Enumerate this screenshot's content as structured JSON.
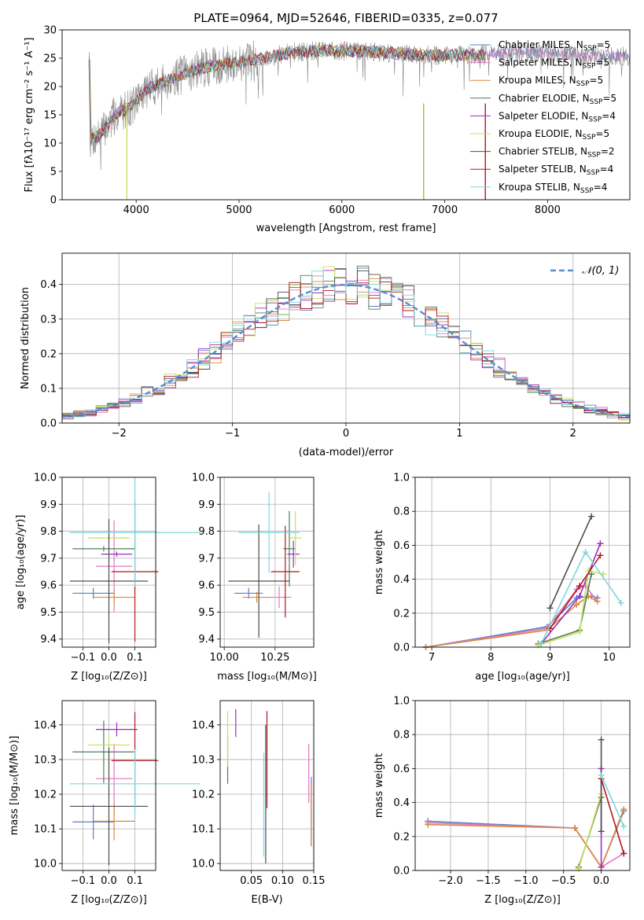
{
  "colors": {
    "Chabrier MILES": "#5b7fc4",
    "Salpeter MILES": "#e377c2",
    "Kroupa MILES": "#d98a3e",
    "Chabrier ELODIE": "#4f7d5a",
    "Salpeter ELODIE": "#9a2fbf",
    "Kroupa ELODIE": "#c8e05a",
    "Chabrier STELIB": "#4d4d4d",
    "Salpeter STELIB": "#b0181e",
    "Kroupa STELIB": "#7dd6dc",
    "normal": "#5b8ad6"
  },
  "chart_data": [
    {
      "id": "spectrum",
      "type": "line",
      "title": "PLATE=0964, MJD=52646, FIBERID=0335, z=0.077",
      "xlabel": "wavelength [Angstrom, rest frame]",
      "ylabel": "Flux [fλ10⁻¹⁷ erg cm⁻² s⁻¹ A⁻¹]",
      "xlim": [
        3280,
        8800
      ],
      "ylim": [
        0,
        30
      ],
      "xticks": [
        "4000",
        "5000",
        "6000",
        "7000",
        "8000"
      ],
      "yticks": [
        "0",
        "5",
        "10",
        "15",
        "20",
        "25",
        "30"
      ],
      "legend_position": "right",
      "legend": [
        {
          "prefix": "Chabrier MILES, N",
          "sub": "SSP",
          "suffix": "=5"
        },
        {
          "prefix": "Salpeter MILES, N",
          "sub": "SSP",
          "suffix": "=5"
        },
        {
          "prefix": "Kroupa MILES, N",
          "sub": "SSP",
          "suffix": "=5"
        },
        {
          "prefix": "Chabrier ELODIE, N",
          "sub": "SSP",
          "suffix": "=5"
        },
        {
          "prefix": "Salpeter ELODIE, N",
          "sub": "SSP",
          "suffix": "=4"
        },
        {
          "prefix": "Kroupa ELODIE, N",
          "sub": "SSP",
          "suffix": "=5"
        },
        {
          "prefix": "Chabrier STELIB, N",
          "sub": "SSP",
          "suffix": "=2"
        },
        {
          "prefix": "Salpeter STELIB, N",
          "sub": "SSP",
          "suffix": "=4"
        },
        {
          "prefix": "Kroupa STELIB, N",
          "sub": "SSP",
          "suffix": "=4"
        }
      ],
      "continuum": [
        [
          3550,
          10.5
        ],
        [
          3650,
          11.5
        ],
        [
          3800,
          15
        ],
        [
          3950,
          16.5
        ],
        [
          4100,
          19.5
        ],
        [
          4300,
          21
        ],
        [
          4500,
          22.5
        ],
        [
          4700,
          23.5
        ],
        [
          4900,
          24
        ],
        [
          5100,
          24.5
        ],
        [
          5300,
          25.2
        ],
        [
          5500,
          26
        ],
        [
          5800,
          26.3
        ],
        [
          6100,
          26.3
        ],
        [
          6400,
          26
        ],
        [
          6800,
          25.5
        ],
        [
          7200,
          25.5
        ],
        [
          7600,
          26
        ],
        [
          8000,
          26
        ],
        [
          8300,
          25.5
        ],
        [
          8800,
          25.3
        ]
      ]
    },
    {
      "id": "residuals",
      "type": "histogram",
      "xlabel": "(data-model)/error",
      "ylabel": "Normed distribution",
      "xlim": [
        -2.5,
        2.5
      ],
      "ylim": [
        0,
        0.49
      ],
      "xticks": [
        "−2",
        "−1",
        "0",
        "1",
        "2"
      ],
      "yticks": [
        "0.0",
        "0.1",
        "0.2",
        "0.3",
        "0.4"
      ],
      "legend": "𝒩(0, 1)",
      "legend_position": "top-right",
      "bin_width": 0.1
    },
    {
      "id": "age-vs-Z",
      "type": "errorbar",
      "xlabel": "Z [log₁₀(Z/Z⊙)]",
      "ylabel": "age  [log₁₀(age/yr)]",
      "xlim": [
        -0.18,
        0.18
      ],
      "ylim": [
        9.37,
        10.0
      ],
      "xticks": [
        "−0.1",
        "0.0",
        "0.1"
      ],
      "yticks": [
        "9.4",
        "9.5",
        "9.6",
        "9.7",
        "9.8",
        "9.9",
        "10.0"
      ],
      "points": [
        {
          "series": "Chabrier MILES",
          "x": -0.06,
          "xerr": 0.08,
          "y": 9.57,
          "yerr": 0.02
        },
        {
          "series": "Salpeter MILES",
          "x": 0.02,
          "xerr": 0.07,
          "y": 9.67,
          "yerr": 0.17
        },
        {
          "series": "Kroupa MILES",
          "x": 0.02,
          "xerr": 0.08,
          "y": 9.555,
          "yerr": 0.03
        },
        {
          "series": "Chabrier ELODIE",
          "x": -0.02,
          "xerr": 0.12,
          "y": 9.735,
          "yerr": 0.01
        },
        {
          "series": "Salpeter ELODIE",
          "x": 0.03,
          "xerr": 0.06,
          "y": 9.715,
          "yerr": 0.01
        },
        {
          "series": "Kroupa ELODIE",
          "x": 0.0,
          "xerr": 0.08,
          "y": 9.775,
          "yerr": 0.01
        },
        {
          "series": "Chabrier STELIB",
          "x": 0.0,
          "xerr": 0.15,
          "y": 9.615,
          "yerr": 0.23
        },
        {
          "series": "Salpeter STELIB",
          "x": 0.1,
          "xerr": 0.09,
          "y": 9.65,
          "yerr": 0.26
        },
        {
          "series": "Kroupa STELIB",
          "x": 0.1,
          "xerr": 0.25,
          "y": 9.795,
          "yerr": 0.2
        }
      ]
    },
    {
      "id": "age-vs-mass",
      "type": "errorbar",
      "xlabel": "mass [log₁₀(M/M⊙)]",
      "ylabel": "",
      "xlim": [
        9.98,
        10.44
      ],
      "ylim": [
        9.37,
        10.0
      ],
      "xticks": [
        "10.00",
        "10.25"
      ],
      "yticks": [
        "9.4",
        "9.5",
        "9.6",
        "9.7",
        "9.8",
        "9.9",
        "10.0"
      ],
      "points": [
        {
          "series": "Chabrier MILES",
          "x": 10.12,
          "xerr": 0.07,
          "y": 9.57,
          "yerr": 0.02
        },
        {
          "series": "Salpeter MILES",
          "x": 10.27,
          "xerr": 0.06,
          "y": 9.555,
          "yerr": 0.04
        },
        {
          "series": "Kroupa MILES",
          "x": 10.16,
          "xerr": 0.07,
          "y": 9.555,
          "yerr": 0.02
        },
        {
          "series": "Chabrier ELODIE",
          "x": 10.32,
          "xerr": 0.03,
          "y": 9.735,
          "yerr": 0.14
        },
        {
          "series": "Salpeter ELODIE",
          "x": 10.34,
          "xerr": 0.03,
          "y": 9.715,
          "yerr": 0.05
        },
        {
          "series": "Kroupa ELODIE",
          "x": 10.35,
          "xerr": 0.03,
          "y": 9.775,
          "yerr": 0.1
        },
        {
          "series": "Chabrier STELIB",
          "x": 10.17,
          "xerr": 0.15,
          "y": 9.615,
          "yerr": 0.21
        },
        {
          "series": "Salpeter STELIB",
          "x": 10.3,
          "xerr": 0.07,
          "y": 9.65,
          "yerr": 0.17
        },
        {
          "series": "Kroupa STELIB",
          "x": 10.22,
          "xerr": 0.15,
          "y": 9.795,
          "yerr": 0.15
        }
      ]
    },
    {
      "id": "weight-vs-age",
      "type": "line",
      "xlabel": "age  [log₁₀(age/yr)]",
      "ylabel": "mass weight",
      "xlim": [
        6.72,
        10.35
      ],
      "ylim": [
        0,
        1.0
      ],
      "xticks": [
        "7",
        "8",
        "9",
        "10"
      ],
      "yticks": [
        "0.0",
        "0.2",
        "0.4",
        "0.6",
        "0.8",
        "1.0"
      ],
      "series": [
        {
          "name": "Chabrier MILES",
          "points": [
            [
              6.9,
              0.0
            ],
            [
              8.95,
              0.12
            ],
            [
              9.45,
              0.29
            ],
            [
              9.7,
              0.3
            ],
            [
              9.8,
              0.29
            ]
          ]
        },
        {
          "name": "Salpeter MILES",
          "points": [
            [
              6.9,
              0.0
            ],
            [
              8.95,
              0.11
            ],
            [
              9.45,
              0.34
            ],
            [
              9.6,
              0.36
            ],
            [
              9.8,
              0.27
            ]
          ]
        },
        {
          "name": "Kroupa MILES",
          "points": [
            [
              6.9,
              0.0
            ],
            [
              8.95,
              0.1
            ],
            [
              9.45,
              0.25
            ],
            [
              9.65,
              0.3
            ],
            [
              9.8,
              0.27
            ]
          ]
        },
        {
          "name": "Chabrier ELODIE",
          "points": [
            [
              8.8,
              0.02
            ],
            [
              9.5,
              0.1
            ],
            [
              9.7,
              0.43
            ]
          ]
        },
        {
          "name": "Salpeter ELODIE",
          "points": [
            [
              8.85,
              0.02
            ],
            [
              9.5,
              0.3
            ],
            [
              9.85,
              0.61
            ]
          ]
        },
        {
          "name": "Kroupa ELODIE",
          "points": [
            [
              8.8,
              0.01
            ],
            [
              9.5,
              0.09
            ],
            [
              9.65,
              0.45
            ],
            [
              9.9,
              0.43
            ]
          ]
        },
        {
          "name": "Chabrier STELIB",
          "points": [
            [
              9.0,
              0.23
            ],
            [
              9.7,
              0.77
            ]
          ]
        },
        {
          "name": "Salpeter STELIB",
          "points": [
            [
              9.0,
              0.11
            ],
            [
              9.5,
              0.36
            ],
            [
              9.85,
              0.54
            ]
          ]
        },
        {
          "name": "Kroupa STELIB",
          "points": [
            [
              8.85,
              0.02
            ],
            [
              9.6,
              0.56
            ],
            [
              10.2,
              0.26
            ]
          ]
        }
      ]
    },
    {
      "id": "mass-vs-Z",
      "type": "errorbar",
      "xlabel": "Z [log₁₀(Z/Z⊙)]",
      "ylabel": "mass [log₁₀(M/M⊙)]",
      "xlim": [
        -0.18,
        0.18
      ],
      "ylim": [
        9.98,
        10.47
      ],
      "xticks": [
        "−0.1",
        "0.0",
        "0.1"
      ],
      "yticks": [
        "10.0",
        "10.1",
        "10.2",
        "10.3",
        "10.4"
      ],
      "points": [
        {
          "series": "Chabrier MILES",
          "x": -0.06,
          "xerr": 0.08,
          "y": 10.12,
          "yerr": 0.05
        },
        {
          "series": "Salpeter MILES",
          "x": 0.02,
          "xerr": 0.07,
          "y": 10.245,
          "yerr": 0.1
        },
        {
          "series": "Kroupa MILES",
          "x": 0.02,
          "xerr": 0.08,
          "y": 10.122,
          "yerr": 0.055
        },
        {
          "series": "Chabrier ELODIE",
          "x": -0.02,
          "xerr": 0.12,
          "y": 10.322,
          "yerr": 0.09
        },
        {
          "series": "Salpeter ELODIE",
          "x": 0.03,
          "xerr": 0.08,
          "y": 10.387,
          "yerr": 0.02
        },
        {
          "series": "Kroupa ELODIE",
          "x": 0.0,
          "xerr": 0.08,
          "y": 10.342,
          "yerr": 0.03
        },
        {
          "series": "Chabrier STELIB",
          "x": 0.0,
          "xerr": 0.15,
          "y": 10.165,
          "yerr": 0.17
        },
        {
          "series": "Salpeter STELIB",
          "x": 0.1,
          "xerr": 0.09,
          "y": 10.297,
          "yerr": 0.14
        },
        {
          "series": "Kroupa STELIB",
          "x": 0.1,
          "xerr": 0.25,
          "y": 10.23,
          "yerr": 0.1
        }
      ]
    },
    {
      "id": "mass-vs-EBV",
      "type": "errorbar",
      "xlabel": "E(B-V)",
      "ylabel": "",
      "xlim": [
        0.0,
        0.15
      ],
      "ylim": [
        9.98,
        10.47
      ],
      "xticks": [
        "0.05",
        "0.10",
        "0.15"
      ],
      "yticks": [
        "10.0",
        "10.1",
        "10.2",
        "10.3",
        "10.4"
      ],
      "points": [
        {
          "series": "Chabrier MILES",
          "x": 0.146,
          "y": 10.15,
          "yerr": 0.1
        },
        {
          "series": "Salpeter MILES",
          "x": 0.142,
          "y": 10.26,
          "yerr": 0.085
        },
        {
          "series": "Kroupa MILES",
          "x": 0.146,
          "y": 10.14,
          "yerr": 0.085
        },
        {
          "series": "Chabrier ELODIE",
          "x": 0.012,
          "y": 10.3,
          "yerr": 0.07
        },
        {
          "series": "Salpeter ELODIE",
          "x": 0.025,
          "y": 10.405,
          "yerr": 0.04
        },
        {
          "series": "Kroupa ELODIE",
          "x": 0.012,
          "y": 10.36,
          "yerr": 0.08
        },
        {
          "series": "Chabrier STELIB",
          "x": 0.073,
          "y": 10.2,
          "yerr": 0.2
        },
        {
          "series": "Salpeter STELIB",
          "x": 0.075,
          "y": 10.3,
          "yerr": 0.14
        },
        {
          "series": "Kroupa STELIB",
          "x": 0.07,
          "y": 10.17,
          "yerr": 0.15
        }
      ]
    },
    {
      "id": "weight-vs-Z",
      "type": "line",
      "xlabel": "Z [log₁₀(Z/Z⊙)]",
      "ylabel": "mass weight",
      "xlim": [
        -2.47,
        0.38
      ],
      "ylim": [
        0,
        1.0
      ],
      "xticks": [
        "−2.0",
        "−1.5",
        "−1.0",
        "−0.5",
        "0.0"
      ],
      "yticks": [
        "0.0",
        "0.2",
        "0.4",
        "0.6",
        "0.8",
        "1.0"
      ],
      "series": [
        {
          "name": "Chabrier MILES",
          "points": [
            [
              -2.3,
              0.29
            ],
            [
              -0.35,
              0.25
            ],
            [
              0.0,
              0.02
            ],
            [
              0.3,
              0.35
            ]
          ]
        },
        {
          "name": "Salpeter MILES",
          "points": [
            [
              -2.3,
              0.28
            ],
            [
              -0.35,
              0.25
            ],
            [
              0.0,
              0.02
            ],
            [
              0.3,
              0.1
            ]
          ]
        },
        {
          "name": "Kroupa MILES",
          "points": [
            [
              -2.3,
              0.27
            ],
            [
              -0.35,
              0.25
            ],
            [
              0.0,
              0.02
            ],
            [
              0.3,
              0.36
            ]
          ]
        },
        {
          "name": "Chabrier ELODIE",
          "points": [
            [
              -0.3,
              0.02
            ],
            [
              0.0,
              0.43
            ]
          ]
        },
        {
          "name": "Salpeter ELODIE",
          "points": [
            [
              0.0,
              0.02
            ],
            [
              0.0,
              0.6
            ]
          ]
        },
        {
          "name": "Kroupa ELODIE",
          "points": [
            [
              -0.3,
              0.01
            ],
            [
              0.0,
              0.45
            ]
          ]
        },
        {
          "name": "Chabrier STELIB",
          "points": [
            [
              0.0,
              0.23
            ],
            [
              0.0,
              0.77
            ]
          ]
        },
        {
          "name": "Salpeter STELIB",
          "points": [
            [
              0.0,
              0.54
            ],
            [
              0.3,
              0.1
            ]
          ]
        },
        {
          "name": "Kroupa STELIB",
          "points": [
            [
              0.0,
              0.56
            ],
            [
              0.3,
              0.26
            ]
          ]
        }
      ]
    }
  ]
}
